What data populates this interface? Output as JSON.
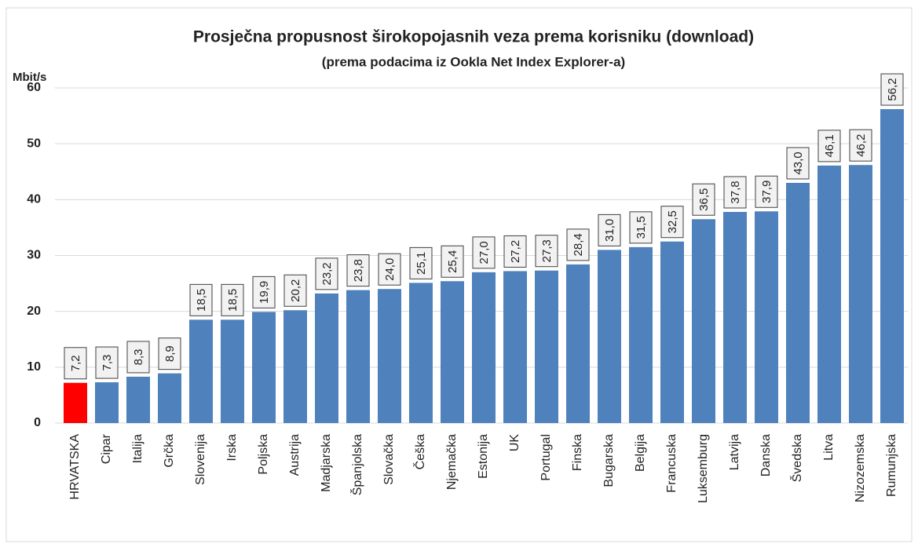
{
  "chart_data": {
    "type": "bar",
    "title": "Prosječna propusnost širokopojasnih veza prema korisniku (download)",
    "subtitle": "(prema podacima iz Ookla Net Index Explorer-a)",
    "y_label": "Mbit/s",
    "categories": [
      "HRVATSKA",
      "Cipar",
      "Italija",
      "Grčka",
      "Slovenija",
      "Irska",
      "Poljska",
      "Austrija",
      "Madjarska",
      "Španjolska",
      "Slovačka",
      "Češka",
      "Njemačka",
      "Estonija",
      "UK",
      "Portugal",
      "Finska",
      "Bugarska",
      "Belgija",
      "Francuska",
      "Luksemburg",
      "Latvija",
      "Danska",
      "Švedska",
      "Litva",
      "Nizozemska",
      "Rumunjska"
    ],
    "values": [
      7.2,
      7.3,
      8.3,
      8.9,
      18.5,
      18.5,
      19.9,
      20.2,
      23.2,
      23.8,
      24.0,
      25.1,
      25.4,
      27.0,
      27.2,
      27.3,
      28.4,
      31.0,
      31.5,
      32.5,
      36.5,
      37.8,
      37.9,
      43.0,
      46.1,
      46.2,
      56.2
    ],
    "value_labels": [
      "7,2",
      "7,3",
      "8,3",
      "8,9",
      "18,5",
      "18,5",
      "19,9",
      "20,2",
      "23,2",
      "23,8",
      "24,0",
      "25,1",
      "25,4",
      "27,0",
      "27,2",
      "27,3",
      "28,4",
      "31,0",
      "31,5",
      "32,5",
      "36,5",
      "37,8",
      "37,9",
      "43,0",
      "46,1",
      "46,2",
      "56,2"
    ],
    "color": "#4f81bd",
    "colors": [
      "#ff0000",
      "#4f81bd",
      "#4f81bd",
      "#4f81bd",
      "#4f81bd",
      "#4f81bd",
      "#4f81bd",
      "#4f81bd",
      "#4f81bd",
      "#4f81bd",
      "#4f81bd",
      "#4f81bd",
      "#4f81bd",
      "#4f81bd",
      "#4f81bd",
      "#4f81bd",
      "#4f81bd",
      "#4f81bd",
      "#4f81bd",
      "#4f81bd",
      "#4f81bd",
      "#4f81bd",
      "#4f81bd",
      "#4f81bd",
      "#4f81bd",
      "#4f81bd",
      "#4f81bd"
    ],
    "ylim": [
      0,
      60
    ],
    "yticks": [
      0,
      10,
      20,
      30,
      40,
      50,
      60
    ],
    "grid": true
  }
}
